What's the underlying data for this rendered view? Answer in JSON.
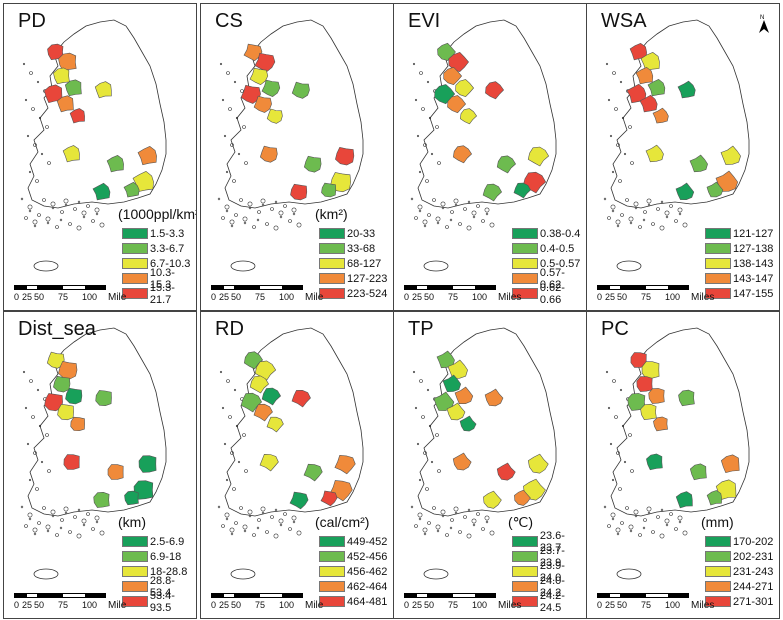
{
  "colors": [
    "#18a05a",
    "#6dbb4f",
    "#e6e63a",
    "#f08a3a",
    "#e8463a"
  ],
  "panels": [
    {
      "title": "PD",
      "unit": "(1000ppl/km²)",
      "legend": [
        "1.5-3.3",
        "3.3-6.7",
        "6.7-10.3",
        "10.3-15.3",
        "15.3-21.7"
      ],
      "scale_unit": "Mile"
    },
    {
      "title": "CS",
      "unit": "(km²)",
      "legend": [
        "20-33",
        "33-68",
        "68-127",
        "127-223",
        "223-524"
      ],
      "scale_unit": "Mile"
    },
    {
      "title": "EVI",
      "unit": "",
      "legend": [
        "0.38-0.4",
        "0.4-0.5",
        "0.5-0.57",
        "0.57-0.62",
        "0.62-0.66"
      ],
      "scale_unit": "Miles"
    },
    {
      "title": "WSA",
      "unit": "",
      "legend": [
        "121-127",
        "127-138",
        "138-143",
        "143-147",
        "147-155"
      ],
      "scale_unit": "Miles",
      "north": "N"
    },
    {
      "title": "Dist_sea",
      "unit": "(km)",
      "legend": [
        "2.5-6.9",
        "6.9-18",
        "18-28.8",
        "28.8-53.4",
        "53.4-93.5"
      ],
      "scale_unit": "Mile"
    },
    {
      "title": "RD",
      "unit": "(cal/cm²)",
      "legend": [
        "449-452",
        "452-456",
        "456-462",
        "462-464",
        "464-481"
      ],
      "scale_unit": "Mile"
    },
    {
      "title": "TP",
      "unit": "(℃)",
      "legend": [
        "23.6-23.7",
        "23.7-23.9",
        "23.9-24.0",
        "24.0-24.2",
        "24.2-24.5"
      ],
      "scale_unit": "Miles"
    },
    {
      "title": "PC",
      "unit": "(mm)",
      "legend": [
        "170-202",
        "202-231",
        "231-243",
        "244-271",
        "271-301"
      ],
      "scale_unit": "Miles"
    }
  ],
  "scale_ticks": [
    "0",
    "25",
    "50",
    "75",
    "100"
  ],
  "city_classes": [
    [
      4,
      3,
      2,
      1,
      4,
      3,
      2,
      4,
      2,
      1,
      3,
      2,
      0,
      1
    ],
    [
      3,
      4,
      2,
      1,
      4,
      3,
      1,
      2,
      3,
      1,
      4,
      2,
      4,
      1
    ],
    [
      1,
      4,
      3,
      2,
      0,
      3,
      4,
      2,
      3,
      1,
      2,
      4,
      1,
      0
    ],
    [
      4,
      2,
      3,
      1,
      4,
      4,
      0,
      3,
      2,
      1,
      2,
      3,
      0,
      1
    ],
    [
      2,
      3,
      1,
      0,
      4,
      2,
      1,
      3,
      4,
      3,
      0,
      0,
      1,
      0
    ],
    [
      1,
      2,
      2,
      0,
      1,
      3,
      4,
      2,
      2,
      1,
      3,
      3,
      0,
      4
    ],
    [
      1,
      2,
      0,
      3,
      1,
      2,
      3,
      0,
      3,
      4,
      2,
      2,
      2,
      3
    ],
    [
      4,
      2,
      4,
      3,
      1,
      2,
      1,
      3,
      0,
      1,
      3,
      2,
      0,
      1
    ]
  ]
}
